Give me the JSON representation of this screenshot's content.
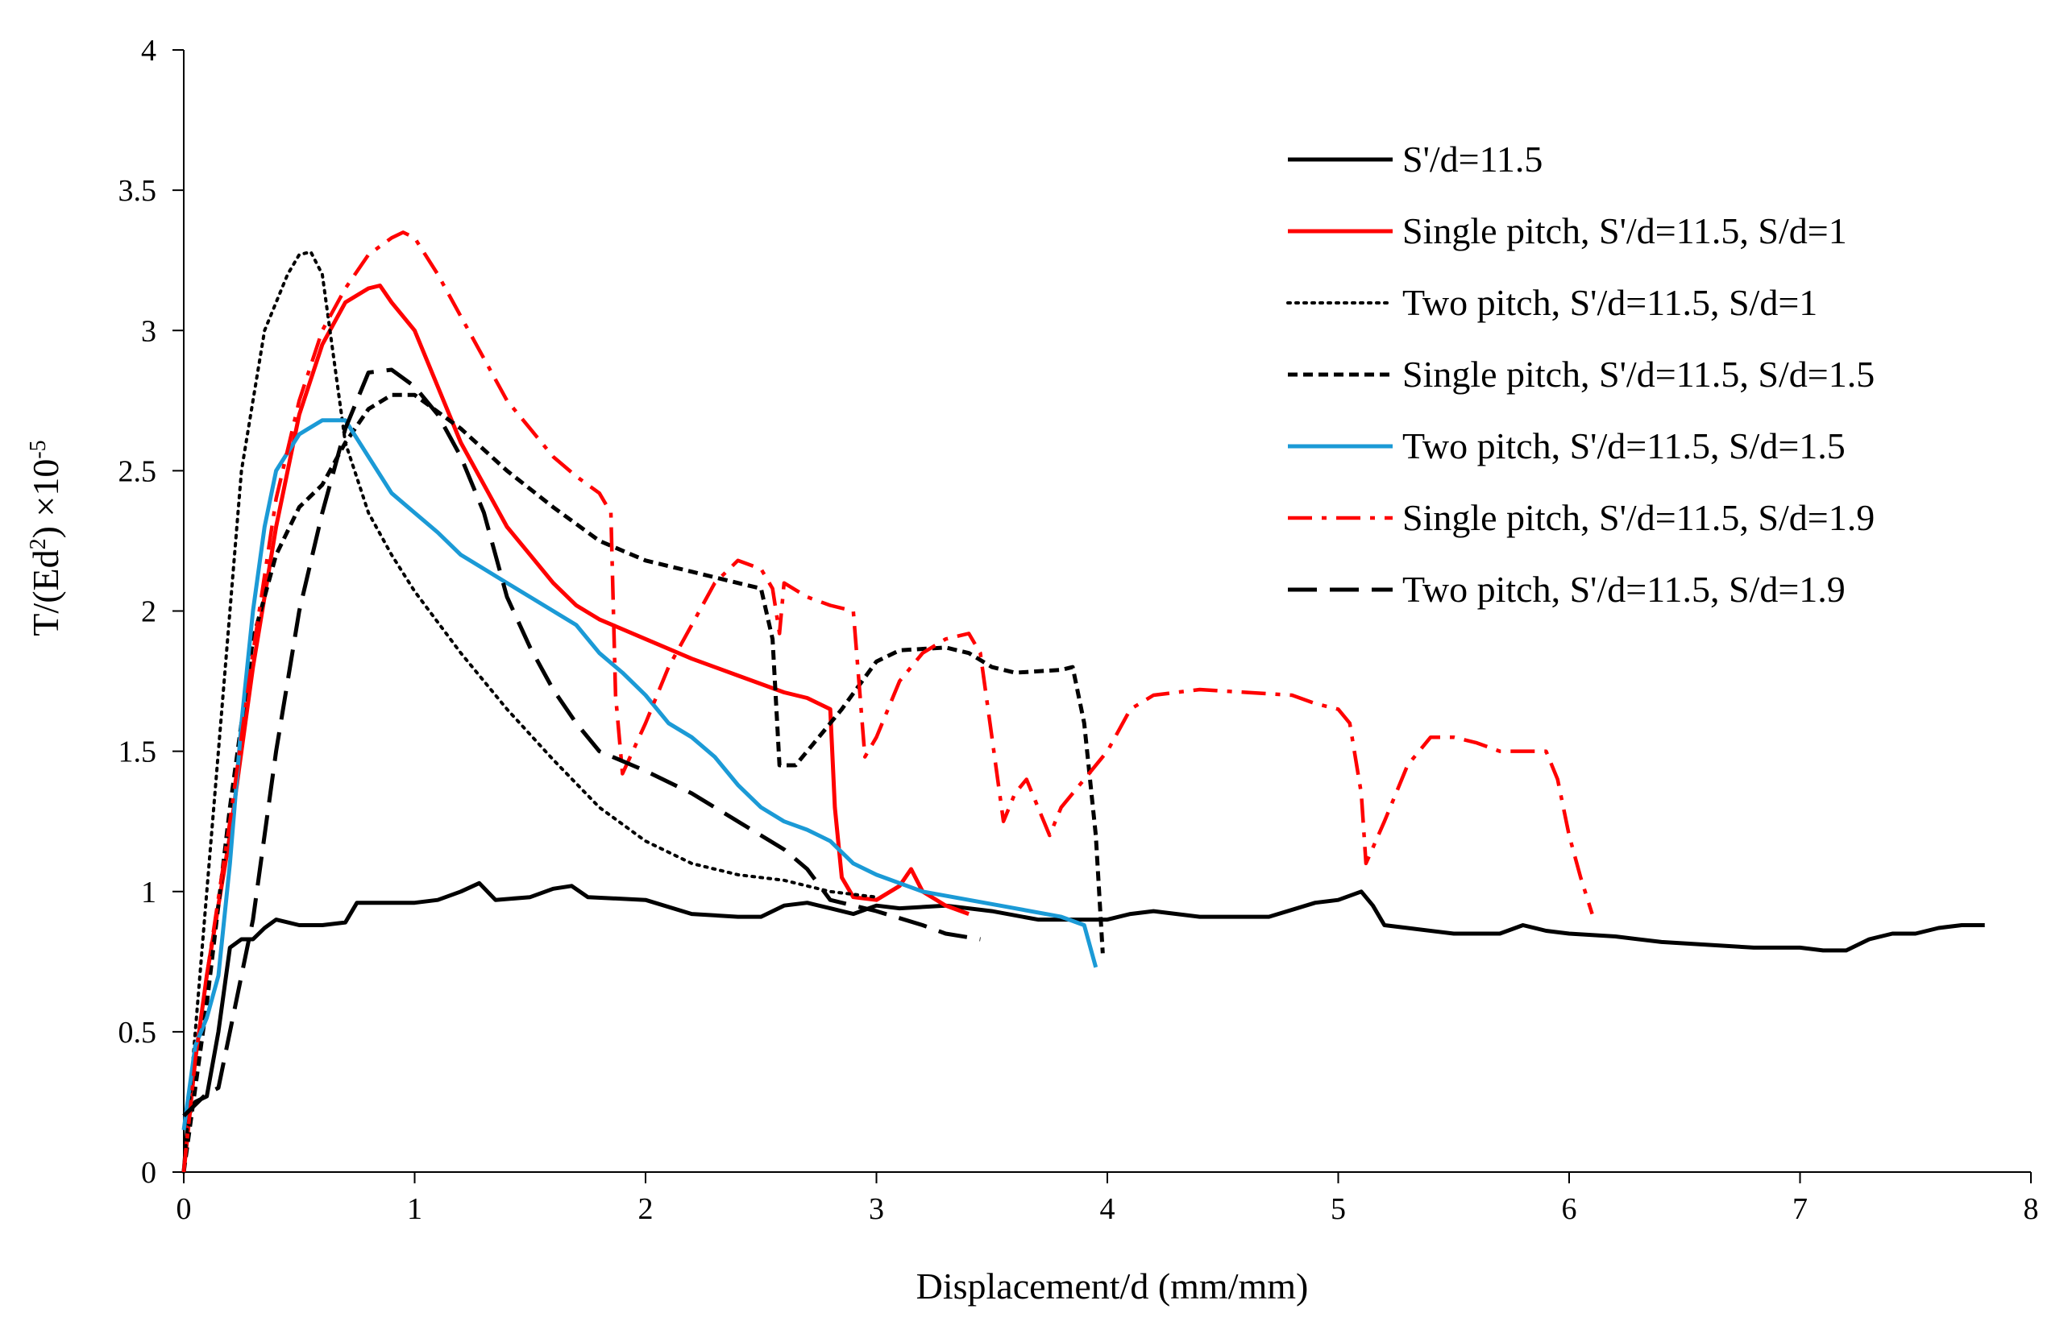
{
  "chart_data": {
    "type": "line",
    "xlabel": "Displacement/d (mm/mm)",
    "ylabel": {
      "base": "T/(Ed",
      "sq": "2",
      "mid": ")  ×10",
      "exp": "-5"
    },
    "xlim": [
      0,
      8
    ],
    "ylim": [
      0,
      4
    ],
    "xticks": [
      "0",
      "1",
      "2",
      "3",
      "4",
      "5",
      "6",
      "7",
      "8"
    ],
    "yticks": [
      "0",
      "0.5",
      "1",
      "1.5",
      "2",
      "2.5",
      "3",
      "3.5",
      "4"
    ],
    "legend_position": "top-right",
    "series": [
      {
        "name": "S'/d=11.5",
        "color": "#000000",
        "style": "solid",
        "points": [
          [
            0,
            0
          ],
          [
            0.02,
            0.2
          ],
          [
            0.05,
            0.25
          ],
          [
            0.1,
            0.27
          ],
          [
            0.15,
            0.5
          ],
          [
            0.2,
            0.8
          ],
          [
            0.25,
            0.83
          ],
          [
            0.3,
            0.83
          ],
          [
            0.35,
            0.87
          ],
          [
            0.4,
            0.9
          ],
          [
            0.5,
            0.88
          ],
          [
            0.6,
            0.88
          ],
          [
            0.7,
            0.89
          ],
          [
            0.75,
            0.96
          ],
          [
            1.0,
            0.96
          ],
          [
            1.1,
            0.97
          ],
          [
            1.2,
            1.0
          ],
          [
            1.28,
            1.03
          ],
          [
            1.35,
            0.97
          ],
          [
            1.5,
            0.98
          ],
          [
            1.6,
            1.01
          ],
          [
            1.68,
            1.02
          ],
          [
            1.75,
            0.98
          ],
          [
            2.0,
            0.97
          ],
          [
            2.2,
            0.92
          ],
          [
            2.4,
            0.91
          ],
          [
            2.5,
            0.91
          ],
          [
            2.6,
            0.95
          ],
          [
            2.7,
            0.96
          ],
          [
            2.8,
            0.94
          ],
          [
            2.9,
            0.92
          ],
          [
            3.0,
            0.95
          ],
          [
            3.1,
            0.94
          ],
          [
            3.3,
            0.95
          ],
          [
            3.5,
            0.93
          ],
          [
            3.7,
            0.9
          ],
          [
            3.9,
            0.9
          ],
          [
            4.0,
            0.9
          ],
          [
            4.1,
            0.92
          ],
          [
            4.2,
            0.93
          ],
          [
            4.4,
            0.91
          ],
          [
            4.7,
            0.91
          ],
          [
            4.9,
            0.96
          ],
          [
            5.0,
            0.97
          ],
          [
            5.1,
            1.0
          ],
          [
            5.15,
            0.95
          ],
          [
            5.2,
            0.88
          ],
          [
            5.3,
            0.87
          ],
          [
            5.5,
            0.85
          ],
          [
            5.7,
            0.85
          ],
          [
            5.8,
            0.88
          ],
          [
            5.9,
            0.86
          ],
          [
            6.0,
            0.85
          ],
          [
            6.2,
            0.84
          ],
          [
            6.4,
            0.82
          ],
          [
            6.6,
            0.81
          ],
          [
            6.8,
            0.8
          ],
          [
            7.0,
            0.8
          ],
          [
            7.1,
            0.79
          ],
          [
            7.2,
            0.79
          ],
          [
            7.3,
            0.83
          ],
          [
            7.4,
            0.85
          ],
          [
            7.5,
            0.85
          ],
          [
            7.6,
            0.87
          ],
          [
            7.7,
            0.88
          ],
          [
            7.8,
            0.88
          ]
        ]
      },
      {
        "name": "Single pitch, S'/d=11.5, S/d=1",
        "color": "#ff0000",
        "style": "solid",
        "points": [
          [
            0,
            0
          ],
          [
            0.05,
            0.4
          ],
          [
            0.1,
            0.7
          ],
          [
            0.2,
            1.2
          ],
          [
            0.3,
            1.8
          ],
          [
            0.4,
            2.3
          ],
          [
            0.5,
            2.7
          ],
          [
            0.6,
            2.95
          ],
          [
            0.7,
            3.1
          ],
          [
            0.8,
            3.15
          ],
          [
            0.85,
            3.16
          ],
          [
            0.9,
            3.1
          ],
          [
            1.0,
            3.0
          ],
          [
            1.1,
            2.8
          ],
          [
            1.2,
            2.6
          ],
          [
            1.3,
            2.45
          ],
          [
            1.4,
            2.3
          ],
          [
            1.5,
            2.2
          ],
          [
            1.6,
            2.1
          ],
          [
            1.7,
            2.02
          ],
          [
            1.8,
            1.97
          ],
          [
            2.0,
            1.9
          ],
          [
            2.2,
            1.83
          ],
          [
            2.4,
            1.77
          ],
          [
            2.6,
            1.71
          ],
          [
            2.7,
            1.69
          ],
          [
            2.8,
            1.65
          ],
          [
            2.82,
            1.3
          ],
          [
            2.85,
            1.05
          ],
          [
            2.9,
            0.98
          ],
          [
            3.0,
            0.97
          ],
          [
            3.1,
            1.02
          ],
          [
            3.15,
            1.08
          ],
          [
            3.2,
            1.0
          ],
          [
            3.3,
            0.95
          ],
          [
            3.4,
            0.92
          ]
        ]
      },
      {
        "name": "Two pitch, S'/d=11.5, S/d=1",
        "color": "#000000",
        "style": "dotted",
        "points": [
          [
            0,
            0
          ],
          [
            0.05,
            0.5
          ],
          [
            0.1,
            1.0
          ],
          [
            0.15,
            1.5
          ],
          [
            0.2,
            2.0
          ],
          [
            0.25,
            2.5
          ],
          [
            0.3,
            2.75
          ],
          [
            0.35,
            3.0
          ],
          [
            0.4,
            3.1
          ],
          [
            0.45,
            3.2
          ],
          [
            0.5,
            3.27
          ],
          [
            0.55,
            3.28
          ],
          [
            0.6,
            3.2
          ],
          [
            0.65,
            2.9
          ],
          [
            0.7,
            2.6
          ],
          [
            0.8,
            2.35
          ],
          [
            0.9,
            2.2
          ],
          [
            1.0,
            2.07
          ],
          [
            1.2,
            1.85
          ],
          [
            1.4,
            1.65
          ],
          [
            1.6,
            1.47
          ],
          [
            1.8,
            1.3
          ],
          [
            2.0,
            1.18
          ],
          [
            2.2,
            1.1
          ],
          [
            2.4,
            1.06
          ],
          [
            2.6,
            1.04
          ],
          [
            2.8,
            1.0
          ],
          [
            3.0,
            0.98
          ]
        ]
      },
      {
        "name": "Single pitch, S'/d=11.5, S/d=1.5",
        "color": "#000000",
        "style": "short-dash",
        "points": [
          [
            0,
            0
          ],
          [
            0.1,
            0.6
          ],
          [
            0.2,
            1.3
          ],
          [
            0.3,
            1.9
          ],
          [
            0.4,
            2.2
          ],
          [
            0.5,
            2.37
          ],
          [
            0.6,
            2.45
          ],
          [
            0.7,
            2.6
          ],
          [
            0.8,
            2.72
          ],
          [
            0.9,
            2.77
          ],
          [
            1.0,
            2.77
          ],
          [
            1.2,
            2.65
          ],
          [
            1.4,
            2.5
          ],
          [
            1.6,
            2.37
          ],
          [
            1.8,
            2.25
          ],
          [
            2.0,
            2.18
          ],
          [
            2.2,
            2.14
          ],
          [
            2.4,
            2.1
          ],
          [
            2.5,
            2.08
          ],
          [
            2.55,
            1.9
          ],
          [
            2.58,
            1.45
          ],
          [
            2.65,
            1.45
          ],
          [
            2.75,
            1.55
          ],
          [
            2.85,
            1.65
          ],
          [
            3.0,
            1.82
          ],
          [
            3.1,
            1.86
          ],
          [
            3.3,
            1.87
          ],
          [
            3.4,
            1.85
          ],
          [
            3.5,
            1.8
          ],
          [
            3.6,
            1.78
          ],
          [
            3.8,
            1.79
          ],
          [
            3.85,
            1.8
          ],
          [
            3.9,
            1.6
          ],
          [
            3.95,
            1.2
          ],
          [
            3.98,
            0.78
          ]
        ]
      },
      {
        "name": "Two pitch, S'/d=11.5, S/d=1.5",
        "color": "#1b9ad6",
        "style": "solid",
        "points": [
          [
            0,
            0.15
          ],
          [
            0.05,
            0.45
          ],
          [
            0.1,
            0.55
          ],
          [
            0.15,
            0.7
          ],
          [
            0.2,
            1.1
          ],
          [
            0.25,
            1.6
          ],
          [
            0.3,
            2.0
          ],
          [
            0.35,
            2.3
          ],
          [
            0.4,
            2.5
          ],
          [
            0.5,
            2.63
          ],
          [
            0.6,
            2.68
          ],
          [
            0.7,
            2.68
          ],
          [
            0.8,
            2.55
          ],
          [
            0.9,
            2.42
          ],
          [
            1.0,
            2.35
          ],
          [
            1.1,
            2.28
          ],
          [
            1.2,
            2.2
          ],
          [
            1.3,
            2.15
          ],
          [
            1.4,
            2.1
          ],
          [
            1.5,
            2.05
          ],
          [
            1.6,
            2.0
          ],
          [
            1.7,
            1.95
          ],
          [
            1.8,
            1.85
          ],
          [
            1.9,
            1.78
          ],
          [
            2.0,
            1.7
          ],
          [
            2.1,
            1.6
          ],
          [
            2.2,
            1.55
          ],
          [
            2.3,
            1.48
          ],
          [
            2.4,
            1.38
          ],
          [
            2.5,
            1.3
          ],
          [
            2.6,
            1.25
          ],
          [
            2.7,
            1.22
          ],
          [
            2.8,
            1.18
          ],
          [
            2.9,
            1.1
          ],
          [
            3.0,
            1.06
          ],
          [
            3.2,
            1.0
          ],
          [
            3.4,
            0.97
          ],
          [
            3.6,
            0.94
          ],
          [
            3.8,
            0.91
          ],
          [
            3.9,
            0.88
          ],
          [
            3.95,
            0.73
          ]
        ]
      },
      {
        "name": "Single pitch, S'/d=11.5, S/d=1.9",
        "color": "#ff0000",
        "style": "dash-dot",
        "points": [
          [
            0,
            0
          ],
          [
            0.05,
            0.4
          ],
          [
            0.1,
            0.7
          ],
          [
            0.2,
            1.25
          ],
          [
            0.3,
            1.85
          ],
          [
            0.4,
            2.4
          ],
          [
            0.5,
            2.75
          ],
          [
            0.6,
            3.0
          ],
          [
            0.7,
            3.15
          ],
          [
            0.8,
            3.27
          ],
          [
            0.9,
            3.33
          ],
          [
            0.95,
            3.35
          ],
          [
            1.0,
            3.33
          ],
          [
            1.1,
            3.2
          ],
          [
            1.2,
            3.05
          ],
          [
            1.3,
            2.9
          ],
          [
            1.4,
            2.75
          ],
          [
            1.5,
            2.65
          ],
          [
            1.6,
            2.55
          ],
          [
            1.7,
            2.48
          ],
          [
            1.8,
            2.42
          ],
          [
            1.85,
            2.35
          ],
          [
            1.87,
            1.7
          ],
          [
            1.9,
            1.42
          ],
          [
            2.0,
            1.6
          ],
          [
            2.1,
            1.8
          ],
          [
            2.2,
            1.95
          ],
          [
            2.3,
            2.1
          ],
          [
            2.4,
            2.18
          ],
          [
            2.5,
            2.15
          ],
          [
            2.55,
            2.08
          ],
          [
            2.58,
            1.92
          ],
          [
            2.6,
            2.1
          ],
          [
            2.7,
            2.05
          ],
          [
            2.8,
            2.02
          ],
          [
            2.9,
            2.0
          ],
          [
            2.95,
            1.48
          ],
          [
            3.0,
            1.55
          ],
          [
            3.1,
            1.75
          ],
          [
            3.2,
            1.85
          ],
          [
            3.3,
            1.9
          ],
          [
            3.4,
            1.92
          ],
          [
            3.45,
            1.85
          ],
          [
            3.5,
            1.55
          ],
          [
            3.55,
            1.25
          ],
          [
            3.6,
            1.35
          ],
          [
            3.65,
            1.4
          ],
          [
            3.7,
            1.3
          ],
          [
            3.75,
            1.2
          ],
          [
            3.8,
            1.3
          ],
          [
            3.85,
            1.35
          ],
          [
            3.9,
            1.4
          ],
          [
            4.0,
            1.5
          ],
          [
            4.1,
            1.65
          ],
          [
            4.2,
            1.7
          ],
          [
            4.4,
            1.72
          ],
          [
            4.6,
            1.71
          ],
          [
            4.8,
            1.7
          ],
          [
            4.9,
            1.67
          ],
          [
            5.0,
            1.65
          ],
          [
            5.05,
            1.6
          ],
          [
            5.1,
            1.35
          ],
          [
            5.12,
            1.1
          ],
          [
            5.2,
            1.25
          ],
          [
            5.3,
            1.45
          ],
          [
            5.4,
            1.55
          ],
          [
            5.5,
            1.55
          ],
          [
            5.6,
            1.53
          ],
          [
            5.7,
            1.5
          ],
          [
            5.8,
            1.5
          ],
          [
            5.9,
            1.5
          ],
          [
            5.95,
            1.4
          ],
          [
            6.0,
            1.2
          ],
          [
            6.05,
            1.05
          ],
          [
            6.1,
            0.92
          ]
        ]
      },
      {
        "name": "Two pitch, S'/d=11.5, S/d=1.9",
        "color": "#000000",
        "style": "long-dash",
        "points": [
          [
            0,
            0.2
          ],
          [
            0.1,
            0.28
          ],
          [
            0.15,
            0.3
          ],
          [
            0.2,
            0.5
          ],
          [
            0.3,
            0.9
          ],
          [
            0.4,
            1.5
          ],
          [
            0.5,
            2.0
          ],
          [
            0.6,
            2.35
          ],
          [
            0.7,
            2.65
          ],
          [
            0.8,
            2.85
          ],
          [
            0.9,
            2.86
          ],
          [
            1.0,
            2.8
          ],
          [
            1.1,
            2.7
          ],
          [
            1.2,
            2.55
          ],
          [
            1.3,
            2.35
          ],
          [
            1.4,
            2.05
          ],
          [
            1.5,
            1.87
          ],
          [
            1.6,
            1.72
          ],
          [
            1.7,
            1.6
          ],
          [
            1.8,
            1.5
          ],
          [
            2.0,
            1.43
          ],
          [
            2.2,
            1.35
          ],
          [
            2.4,
            1.25
          ],
          [
            2.6,
            1.15
          ],
          [
            2.7,
            1.08
          ],
          [
            2.8,
            0.97
          ],
          [
            3.0,
            0.93
          ],
          [
            3.2,
            0.88
          ],
          [
            3.3,
            0.85
          ],
          [
            3.45,
            0.83
          ]
        ]
      }
    ]
  }
}
